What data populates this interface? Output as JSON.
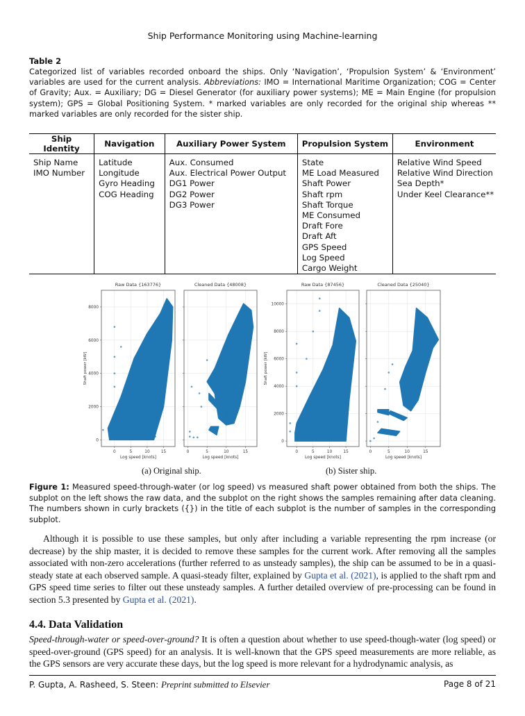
{
  "running_head": "Ship Performance Monitoring using Machine-learning",
  "table": {
    "label": "Table 2",
    "caption_a": "Categorized list of variables recorded onboard the ships. Only ‘Navigation’, ‘Propulsion System’ & ‘Environment’ variables are used for the current analysis. ",
    "caption_abbr": "Abbreviations:",
    "caption_b": " IMO = International Maritime Organization; COG = Center of Gravity; Aux. = Auxiliary; DG = Diesel Generator (for auxiliary power systems); ME = Main Engine (for propulsion system); GPS = Global Positioning System. * marked variables are only recorded for the original ship whereas ** marked variables are only recorded for the sister ship.",
    "columns": [
      {
        "header": "Ship Identity",
        "items": [
          "Ship Name",
          "IMO Number"
        ]
      },
      {
        "header": "Navigation",
        "items": [
          "Latitude",
          "Longitude",
          "Gyro Heading",
          "COG Heading"
        ]
      },
      {
        "header": "Auxiliary Power System",
        "items": [
          "Aux. Consumed",
          "Aux. Electrical Power Output",
          "DG1 Power",
          "DG2 Power",
          "DG3 Power"
        ]
      },
      {
        "header": "Propulsion System",
        "items": [
          "State",
          "ME Load Measured",
          "Shaft Power",
          "Shaft rpm",
          "Shaft Torque",
          "ME Consumed",
          "Draft Fore",
          "Draft Aft",
          "GPS Speed",
          "Log Speed",
          "Cargo Weight"
        ]
      },
      {
        "header": "Environment",
        "items": [
          "Relative Wind Speed",
          "Relative Wind Direction",
          "Sea Depth*",
          "Under Keel Clearance**"
        ]
      }
    ]
  },
  "figure": {
    "subcaption_a": "(a) Original ship.",
    "subcaption_b": "(b) Sister ship.",
    "caption_label": "Figure 1:",
    "caption_text": " Measured speed-through-water (or log speed) vs measured shaft power obtained from both the ships. The subplot on the left shows the raw data, and the subplot on the right shows the samples remaining after data cleaning. The numbers shown in curly brackets ({}) in the title of each subplot is the number of samples in the corresponding subplot."
  },
  "chart_data": [
    {
      "type": "scatter",
      "title": "Raw Data {163776}",
      "xlabel": "Log speed [knots]",
      "ylabel": "Shaft power [kW]",
      "xlim": [
        -4,
        18.5
      ],
      "ylim": [
        -400,
        9000
      ],
      "xticks": [
        "0",
        "5",
        "10",
        "15"
      ],
      "xtick_values": [
        0,
        5,
        10,
        15
      ],
      "yticks": [
        "0",
        "2000",
        "4000",
        "6000",
        "8000"
      ],
      "ytick_values": [
        0,
        2000,
        4000,
        6000,
        8000
      ],
      "grid": true,
      "color": "#1f77b4",
      "cloud": [
        [
          -1.5,
          0
        ],
        [
          12,
          0
        ],
        [
          15,
          2000
        ],
        [
          17.5,
          6000
        ],
        [
          17.8,
          8000
        ],
        [
          16,
          8500
        ],
        [
          14,
          7600
        ],
        [
          10,
          6400
        ],
        [
          6,
          4900
        ],
        [
          2,
          2600
        ],
        [
          -2,
          700
        ]
      ],
      "outliers": [
        [
          0,
          6800
        ],
        [
          2,
          5600
        ],
        [
          0,
          4000
        ],
        [
          0,
          3200
        ],
        [
          -3.5,
          600
        ],
        [
          12.5,
          400
        ],
        [
          12.5,
          200
        ],
        [
          0,
          5000
        ]
      ]
    },
    {
      "type": "scatter",
      "title": "Cleaned Data {48008}",
      "xlabel": "Log speed [knots]",
      "ylabel": "",
      "xlim": [
        -1,
        18
      ],
      "ylim": [
        -400,
        9000
      ],
      "xticks": [
        "0",
        "5",
        "10",
        "15"
      ],
      "xtick_values": [
        0,
        5,
        10,
        15
      ],
      "yticks": [],
      "ytick_values": [
        0,
        2000,
        4000,
        6000,
        8000
      ],
      "grid": true,
      "color": "#1f77b4",
      "cloud": [
        [
          8,
          1300
        ],
        [
          10,
          900
        ],
        [
          12,
          1000
        ],
        [
          13.5,
          2000
        ],
        [
          15,
          3500
        ],
        [
          17,
          6800
        ],
        [
          16.5,
          7800
        ],
        [
          14.5,
          8200
        ],
        [
          13,
          7500
        ],
        [
          10.5,
          6300
        ],
        [
          7,
          4300
        ],
        [
          5,
          3500
        ],
        [
          7,
          2800
        ]
      ],
      "blobs": [
        [
          [
            5.5,
            600
          ],
          [
            7.5,
            300
          ],
          [
            8,
            800
          ],
          [
            6,
            800
          ]
        ],
        [
          [
            5.5,
            2400
          ],
          [
            10,
            1300
          ],
          [
            10,
            1700
          ],
          [
            5.5,
            2800
          ]
        ]
      ],
      "outliers": [
        [
          0.5,
          200
        ],
        [
          1.5,
          150
        ],
        [
          2.5,
          150
        ],
        [
          0.5,
          500
        ],
        [
          3,
          2800
        ],
        [
          3.5,
          2000
        ],
        [
          5,
          4800
        ],
        [
          1,
          3200
        ]
      ]
    },
    {
      "type": "scatter",
      "title": "Raw Data {87456}",
      "xlabel": "Log speed [knots]",
      "ylabel": "Shaft power [kW]",
      "xlim": [
        -3,
        19
      ],
      "ylim": [
        -400,
        11000
      ],
      "xticks": [
        "0",
        "5",
        "10",
        "15"
      ],
      "xtick_values": [
        0,
        5,
        10,
        15
      ],
      "yticks": [
        "0",
        "2000",
        "4000",
        "6000",
        "8000",
        "10000"
      ],
      "ytick_values": [
        0,
        2000,
        4000,
        6000,
        8000,
        10000
      ],
      "grid": true,
      "color": "#1f77b4",
      "cloud": [
        [
          -0.5,
          0
        ],
        [
          15,
          0
        ],
        [
          16,
          3000
        ],
        [
          18,
          7300
        ],
        [
          16,
          9000
        ],
        [
          13,
          9700
        ],
        [
          11,
          7000
        ],
        [
          8,
          5200
        ],
        [
          4,
          3300
        ],
        [
          0,
          1300
        ],
        [
          -0.5,
          600
        ]
      ],
      "outliers": [
        [
          -2,
          1300
        ],
        [
          0,
          7100
        ],
        [
          7,
          10400
        ],
        [
          7,
          9500
        ],
        [
          3,
          6000
        ],
        [
          5,
          8000
        ],
        [
          0,
          5000
        ],
        [
          0,
          4000
        ],
        [
          -2,
          700
        ]
      ]
    },
    {
      "type": "scatter",
      "title": "Cleaned Data {25040}",
      "xlabel": "Log speed [knots]",
      "ylabel": "",
      "xlim": [
        -1,
        19
      ],
      "ylim": [
        -400,
        11000
      ],
      "xticks": [
        "0",
        "5",
        "10",
        "15"
      ],
      "xtick_values": [
        0,
        5,
        10,
        15
      ],
      "yticks": [],
      "ytick_values": [
        0,
        2000,
        4000,
        6000,
        8000,
        10000
      ],
      "grid": true,
      "color": "#1f77b4",
      "cloud": [
        [
          9,
          2600
        ],
        [
          11,
          2200
        ],
        [
          13,
          3000
        ],
        [
          15,
          5000
        ],
        [
          17,
          6800
        ],
        [
          18.5,
          7400
        ],
        [
          15.5,
          9000
        ],
        [
          12.5,
          9700
        ],
        [
          11.5,
          6600
        ],
        [
          9.5,
          5400
        ],
        [
          8,
          4300
        ]
      ],
      "blobs": [
        [
          [
            2,
            600
          ],
          [
            7,
            400
          ],
          [
            8,
            700
          ],
          [
            3,
            900
          ]
        ],
        [
          [
            5,
            2000
          ],
          [
            9,
            1500
          ],
          [
            10,
            1700
          ],
          [
            5.5,
            2200
          ]
        ],
        [
          [
            2,
            2100
          ],
          [
            5,
            1900
          ],
          [
            5,
            2300
          ],
          [
            2,
            2300
          ]
        ]
      ],
      "outliers": [
        [
          0,
          0
        ],
        [
          1,
          200
        ],
        [
          2,
          1400
        ],
        [
          5,
          5000
        ],
        [
          4,
          3800
        ],
        [
          6,
          5600
        ]
      ]
    }
  ],
  "body": {
    "para_1": "Although it is possible to use these samples, but only after including a variable representing the rpm increase (or decrease) by the ship master, it is decided to remove these samples for the current work. After removing all the samples associated with non-zero accelerations (further referred to as unsteady samples), the ship can be assumed to be in a quasi-steady state at each observed sample. A quasi-steady filter, explained by ",
    "cite_1": "Gupta et al. (2021)",
    "para_2": ", is applied to the shaft rpm and GPS speed time series to filter out these unsteady samples. A further detailed overview of pre-processing can be found in section 5.3 presented by ",
    "cite_2": "Gupta et al. (2021)",
    "para_3": ".",
    "section_heading": "4.4. Data Validation",
    "section_lead": "Speed-through-water or speed-over-ground?",
    "section_text": " It is often a question about whether to use speed-though-water (log speed) or speed-over-ground (GPS speed) for an analysis. It is well-known that the GPS speed measurements are more reliable, as the GPS sensors are very accurate these days, but the log speed is more relevant for a hydrodynamic analysis, as"
  },
  "footer": {
    "authors": "P. Gupta, A. Rasheed, S. Steen: ",
    "venue": "Preprint submitted to Elsevier",
    "page": "Page 8 of 21"
  }
}
